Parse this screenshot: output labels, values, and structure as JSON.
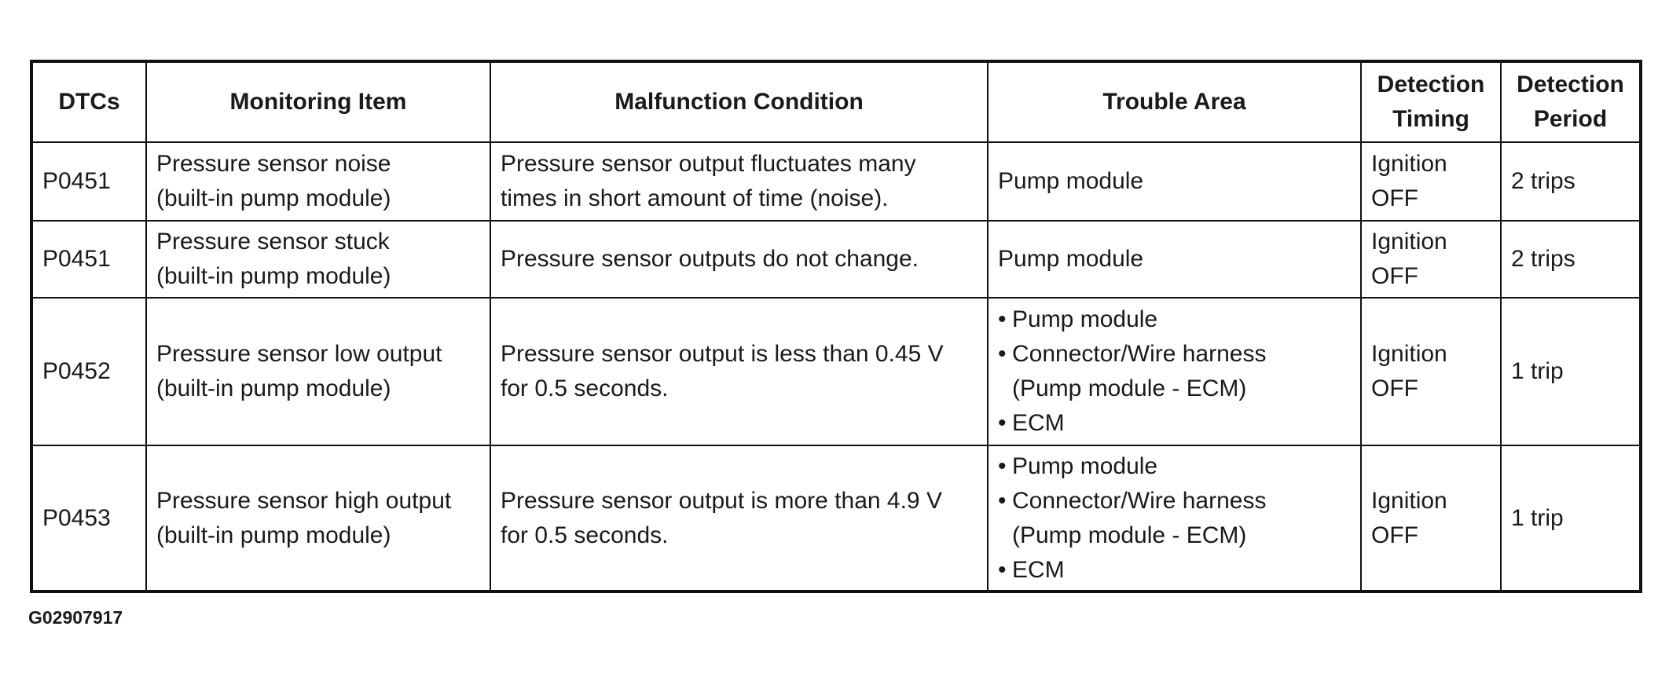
{
  "table": {
    "headers": {
      "dtcs": "DTCs",
      "monitoring_item": "Monitoring Item",
      "malfunction_condition": "Malfunction Condition",
      "trouble_area": "Trouble Area",
      "detection_timing": [
        "Detection",
        "Timing"
      ],
      "detection_period": [
        "Detection",
        "Period"
      ]
    },
    "rows": [
      {
        "dtc": "P0451",
        "monitoring_item": [
          "Pressure sensor noise",
          "(built-in pump module)"
        ],
        "malfunction_condition": [
          "Pressure sensor output fluctuates many",
          "times in short amount of time (noise)."
        ],
        "trouble_area": "Pump module",
        "detection_timing": [
          "Ignition",
          "OFF"
        ],
        "detection_period": "2 trips"
      },
      {
        "dtc": "P0451",
        "monitoring_item": [
          "Pressure sensor stuck",
          "(built-in pump module)"
        ],
        "malfunction_condition": [
          "Pressure sensor outputs do not change."
        ],
        "trouble_area": "Pump module",
        "detection_timing": [
          "Ignition",
          "OFF"
        ],
        "detection_period": "2 trips"
      },
      {
        "dtc": "P0452",
        "monitoring_item": [
          "Pressure sensor low output",
          "(built-in pump module)"
        ],
        "malfunction_condition": [
          "Pressure sensor output is less than 0.45 V",
          "for 0.5 seconds."
        ],
        "trouble_area_bullets": [
          "Pump module",
          "Connector/Wire harness",
          "ECM"
        ],
        "trouble_area_sub": "(Pump module - ECM)",
        "detection_timing": [
          "Ignition",
          "OFF"
        ],
        "detection_period": "1 trip"
      },
      {
        "dtc": "P0453",
        "monitoring_item": [
          "Pressure sensor high output",
          "(built-in pump module)"
        ],
        "malfunction_condition": [
          "Pressure sensor output is more than 4.9 V",
          "for 0.5 seconds."
        ],
        "trouble_area_bullets": [
          "Pump module",
          "Connector/Wire harness",
          "ECM"
        ],
        "trouble_area_sub": "(Pump module - ECM)",
        "detection_timing": [
          "Ignition",
          "OFF"
        ],
        "detection_period": "1 trip"
      }
    ]
  },
  "figure_code": "G02907917",
  "bullet_glyph": "•"
}
